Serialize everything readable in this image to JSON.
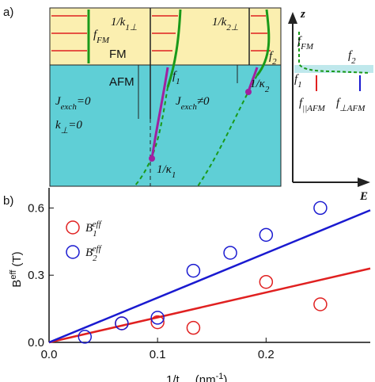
{
  "diagram": {
    "panel_label": "a)",
    "labels": {
      "f_fm": [
        "f",
        "FM"
      ],
      "k1": [
        "1/k",
        "1⊥"
      ],
      "fm": [
        "FM"
      ],
      "f1": [
        "f",
        "1"
      ],
      "k2": [
        "1/k",
        "2⊥"
      ],
      "f2": [
        "f",
        "2"
      ],
      "afm": [
        "AFM"
      ],
      "jexch0": [
        "J",
        "exch",
        "=0"
      ],
      "kperp": [
        "k",
        "⊥",
        "=0"
      ],
      "jexchne": [
        "J",
        "exch",
        "≠0"
      ],
      "kappa2": [
        "1/κ",
        "2"
      ],
      "kappa1": [
        "1/κ",
        "1"
      ],
      "z": [
        "z"
      ],
      "e": [
        "E"
      ],
      "in_ffm": [
        "f",
        "FM"
      ],
      "in_f2": [
        "f",
        "2"
      ],
      "in_f1": [
        "f",
        "1"
      ],
      "in_fpar": [
        "f",
        "||AFM"
      ],
      "in_fperp": [
        "f",
        "⊥AFM"
      ]
    }
  },
  "chart_data": {
    "type": "scatter",
    "panel_label": "b)",
    "x_label": [
      "1/t",
      "FM",
      " (nm",
      "-1",
      ")"
    ],
    "y_label": [
      "B",
      "eff",
      " (T)"
    ],
    "xlim": [
      0,
      0.296
    ],
    "ylim": [
      0,
      0.69
    ],
    "xticks": [
      {
        "value": 0,
        "label": "0.0"
      },
      0.1,
      0.2
    ],
    "yticks": [
      {
        "value": 0,
        "label": "0.0"
      },
      0.3,
      0.6
    ],
    "series": [
      {
        "name": "B",
        "name_sub": "1",
        "name_sup": "eff",
        "color": "#e02020",
        "x": [
          0.067,
          0.1,
          0.133,
          0.2,
          0.25
        ],
        "values": [
          0.085,
          0.09,
          0.065,
          0.27,
          0.17
        ]
      },
      {
        "name": "B",
        "name_sub": "2",
        "name_sup": "eff",
        "color": "#1a1ad0",
        "x": [
          0.033,
          0.067,
          0.1,
          0.133,
          0.167,
          0.2,
          0.25
        ],
        "values": [
          0.025,
          0.085,
          0.11,
          0.32,
          0.4,
          0.48,
          0.6
        ]
      }
    ],
    "fits": [
      {
        "color": "#e02020",
        "x": [
          0,
          0.296
        ],
        "values": [
          0,
          0.33
        ]
      },
      {
        "color": "#1a1ad0",
        "x": [
          0,
          0.296
        ],
        "values": [
          0,
          0.59
        ]
      }
    ]
  }
}
